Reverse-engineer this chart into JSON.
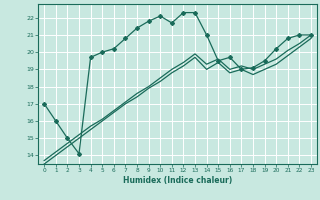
{
  "xlabel": "Humidex (Indice chaleur)",
  "ylabel": "",
  "background_color": "#c8e8e0",
  "line_color": "#1a6b5a",
  "grid_color": "#ffffff",
  "xlim": [
    -0.5,
    23.5
  ],
  "ylim": [
    13.5,
    22.8
  ],
  "xticks": [
    0,
    1,
    2,
    3,
    4,
    5,
    6,
    7,
    8,
    9,
    10,
    11,
    12,
    13,
    14,
    15,
    16,
    17,
    18,
    19,
    20,
    21,
    22,
    23
  ],
  "yticks": [
    14,
    15,
    16,
    17,
    18,
    19,
    20,
    21,
    22
  ],
  "curve1_x": [
    0,
    1,
    2,
    3,
    4,
    5,
    6,
    7,
    8,
    9,
    10,
    11,
    12,
    13,
    14,
    15,
    16,
    17,
    18,
    19,
    20,
    21,
    22,
    23
  ],
  "curve1_y": [
    17.0,
    16.0,
    15.0,
    14.1,
    19.7,
    20.0,
    20.2,
    20.8,
    21.4,
    21.8,
    22.1,
    21.7,
    22.3,
    22.3,
    21.0,
    19.5,
    19.7,
    19.0,
    19.1,
    19.5,
    20.2,
    20.8,
    21.0,
    21.0
  ],
  "curve2_x": [
    0,
    1,
    2,
    3,
    4,
    5,
    6,
    7,
    8,
    9,
    10,
    11,
    12,
    13,
    14,
    15,
    16,
    17,
    18,
    19,
    20,
    21,
    22,
    23
  ],
  "curve2_y": [
    13.7,
    14.2,
    14.7,
    15.2,
    15.7,
    16.1,
    16.6,
    17.1,
    17.6,
    18.0,
    18.5,
    19.0,
    19.4,
    19.9,
    19.3,
    19.6,
    19.0,
    19.2,
    19.0,
    19.3,
    19.6,
    20.1,
    20.5,
    21.0
  ],
  "curve3_x": [
    0,
    1,
    2,
    3,
    4,
    5,
    6,
    7,
    8,
    9,
    10,
    11,
    12,
    13,
    14,
    15,
    16,
    17,
    18,
    19,
    20,
    21,
    22,
    23
  ],
  "curve3_y": [
    13.5,
    14.0,
    14.5,
    15.0,
    15.5,
    16.0,
    16.5,
    17.0,
    17.4,
    17.9,
    18.3,
    18.8,
    19.2,
    19.7,
    19.0,
    19.4,
    18.8,
    19.0,
    18.7,
    19.0,
    19.3,
    19.8,
    20.3,
    20.8
  ]
}
